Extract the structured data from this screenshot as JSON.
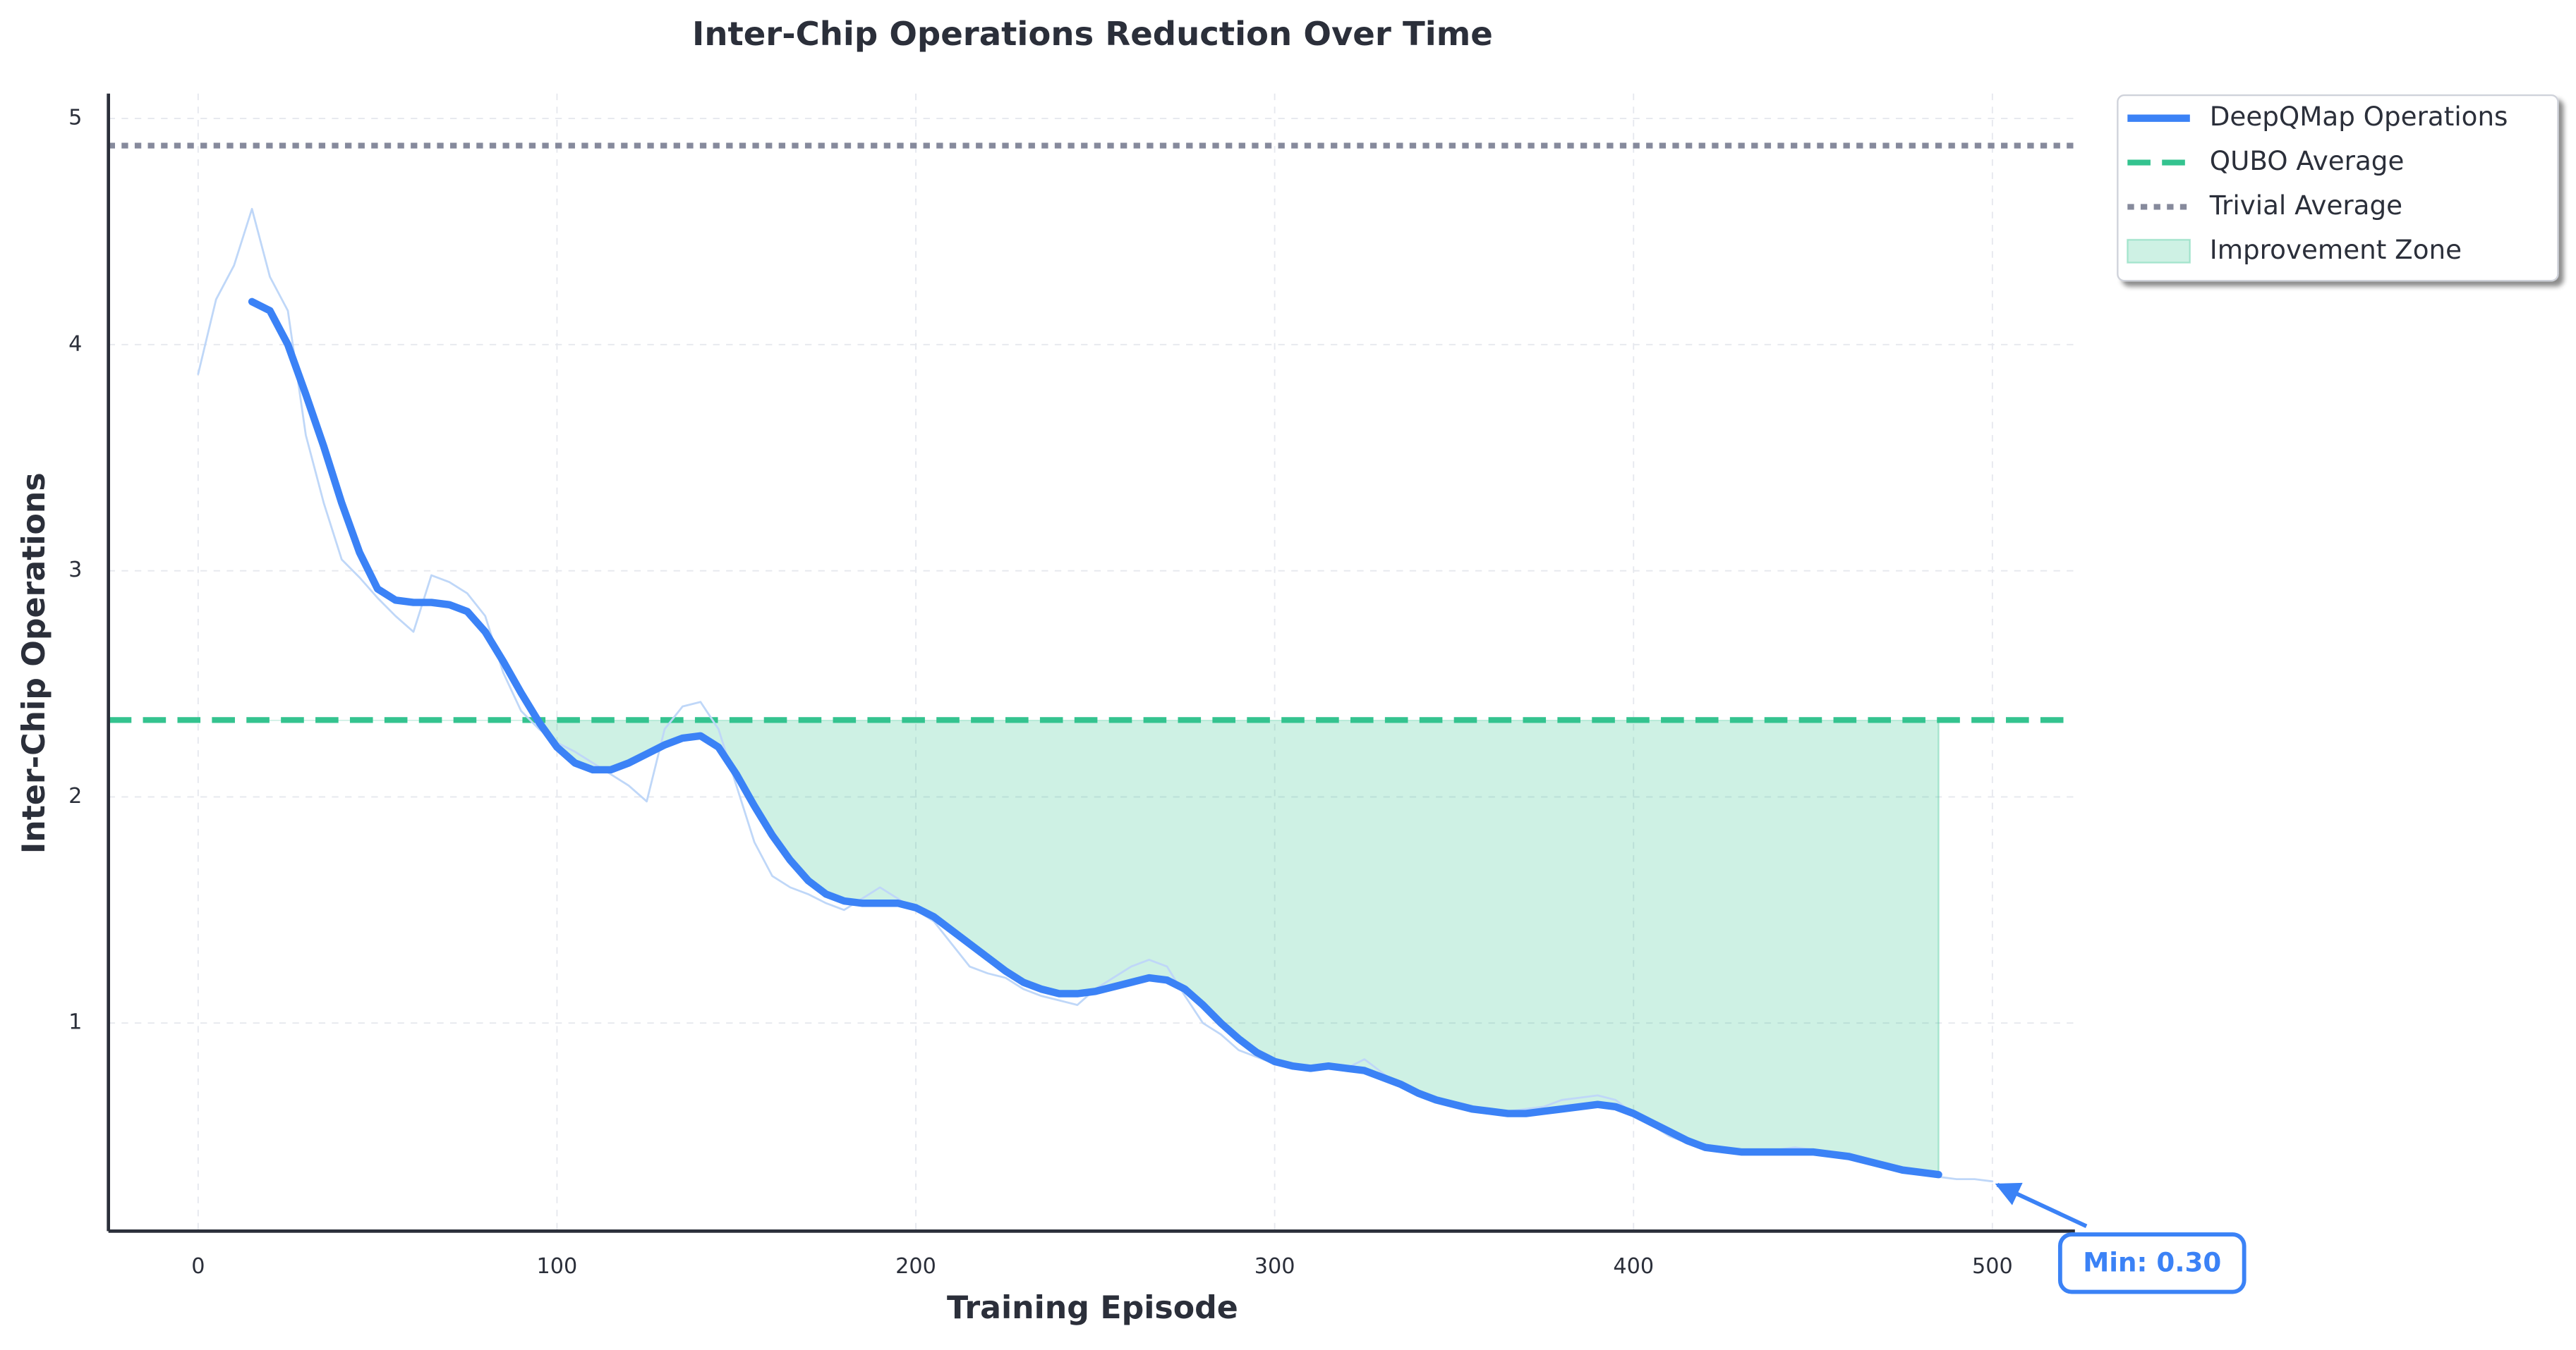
{
  "chart_data": {
    "type": "line",
    "title": "Inter-Chip Operations Reduction Over Time",
    "x_label": "Training Episode",
    "y_label": "Inter-Chip Operations",
    "xlim": [
      -25,
      523
    ],
    "ylim": [
      0.08,
      5.11
    ],
    "xticks": [
      0,
      100,
      200,
      300,
      400,
      500
    ],
    "yticks": [
      1,
      2,
      3,
      4,
      5
    ],
    "grid": true,
    "series": [
      {
        "name": "DeepQMap Operations",
        "color": "#3b82f6",
        "x": [
          15,
          20,
          25,
          30,
          35,
          40,
          45,
          50,
          55,
          60,
          65,
          70,
          75,
          80,
          85,
          90,
          95,
          100,
          105,
          110,
          115,
          120,
          125,
          130,
          135,
          140,
          145,
          150,
          155,
          160,
          165,
          170,
          175,
          180,
          185,
          190,
          195,
          200,
          205,
          210,
          215,
          220,
          225,
          230,
          235,
          240,
          245,
          250,
          255,
          260,
          265,
          270,
          275,
          280,
          285,
          290,
          295,
          300,
          305,
          310,
          315,
          320,
          325,
          330,
          335,
          340,
          345,
          350,
          355,
          360,
          365,
          370,
          375,
          380,
          385,
          390,
          395,
          400,
          405,
          410,
          415,
          420,
          425,
          430,
          435,
          440,
          445,
          450,
          455,
          460,
          465,
          470,
          475,
          480,
          485
        ],
        "values": [
          4.19,
          4.15,
          4.0,
          3.78,
          3.55,
          3.3,
          3.08,
          2.92,
          2.87,
          2.86,
          2.86,
          2.85,
          2.82,
          2.73,
          2.6,
          2.46,
          2.33,
          2.22,
          2.15,
          2.12,
          2.12,
          2.15,
          2.19,
          2.23,
          2.26,
          2.27,
          2.22,
          2.1,
          1.96,
          1.83,
          1.72,
          1.63,
          1.57,
          1.54,
          1.53,
          1.53,
          1.53,
          1.51,
          1.47,
          1.41,
          1.35,
          1.29,
          1.23,
          1.18,
          1.15,
          1.13,
          1.13,
          1.14,
          1.16,
          1.18,
          1.2,
          1.19,
          1.15,
          1.08,
          1.0,
          0.93,
          0.87,
          0.83,
          0.81,
          0.8,
          0.81,
          0.8,
          0.79,
          0.76,
          0.73,
          0.69,
          0.66,
          0.64,
          0.62,
          0.61,
          0.6,
          0.6,
          0.61,
          0.62,
          0.63,
          0.64,
          0.63,
          0.6,
          0.56,
          0.52,
          0.48,
          0.45,
          0.44,
          0.43,
          0.43,
          0.43,
          0.43,
          0.43,
          0.42,
          0.41,
          0.39,
          0.37,
          0.35,
          0.34,
          0.33
        ]
      },
      {
        "color": "#bfd7f8",
        "x": [
          0,
          5,
          10,
          15,
          20,
          25,
          30,
          35,
          40,
          45,
          50,
          55,
          60,
          65,
          70,
          75,
          80,
          85,
          90,
          95,
          100,
          105,
          110,
          115,
          120,
          125,
          130,
          135,
          140,
          145,
          150,
          155,
          160,
          165,
          170,
          175,
          180,
          185,
          190,
          195,
          200,
          205,
          210,
          215,
          220,
          225,
          230,
          235,
          240,
          245,
          250,
          255,
          260,
          265,
          270,
          275,
          280,
          285,
          290,
          295,
          300,
          305,
          310,
          315,
          320,
          325,
          330,
          335,
          340,
          345,
          350,
          355,
          360,
          365,
          370,
          375,
          380,
          385,
          390,
          395,
          400,
          405,
          410,
          415,
          420,
          425,
          430,
          435,
          440,
          445,
          450,
          455,
          460,
          465,
          470,
          475,
          480,
          485,
          490,
          495,
          500
        ],
        "values": [
          3.87,
          4.2,
          4.35,
          4.6,
          4.3,
          4.15,
          3.6,
          3.3,
          3.05,
          2.97,
          2.88,
          2.8,
          2.73,
          2.98,
          2.95,
          2.9,
          2.8,
          2.55,
          2.38,
          2.3,
          2.24,
          2.2,
          2.15,
          2.1,
          2.05,
          1.98,
          2.3,
          2.4,
          2.42,
          2.3,
          2.05,
          1.8,
          1.65,
          1.6,
          1.57,
          1.53,
          1.5,
          1.55,
          1.6,
          1.55,
          1.5,
          1.45,
          1.35,
          1.25,
          1.22,
          1.2,
          1.15,
          1.12,
          1.1,
          1.08,
          1.15,
          1.2,
          1.25,
          1.28,
          1.25,
          1.12,
          1.0,
          0.95,
          0.88,
          0.85,
          0.82,
          0.8,
          0.81,
          0.82,
          0.8,
          0.84,
          0.78,
          0.72,
          0.68,
          0.66,
          0.64,
          0.63,
          0.62,
          0.61,
          0.62,
          0.63,
          0.66,
          0.67,
          0.68,
          0.66,
          0.6,
          0.55,
          0.5,
          0.47,
          0.45,
          0.44,
          0.44,
          0.43,
          0.44,
          0.45,
          0.44,
          0.42,
          0.4,
          0.38,
          0.36,
          0.34,
          0.33,
          0.32,
          0.31,
          0.31,
          0.3
        ]
      }
    ],
    "hlines": [
      {
        "name": "QUBO Average",
        "value": 2.34,
        "color": "#34c38f",
        "style": "dashed"
      },
      {
        "name": "Trivial Average",
        "value": 4.88,
        "color": "#868a9c",
        "style": "dotted"
      }
    ],
    "fill": {
      "name": "Improvement Zone",
      "color": "#34c38f"
    },
    "annotation": {
      "text": "Min: 0.30",
      "x": 500,
      "y": 0.3,
      "color": "#3b82f6"
    }
  }
}
